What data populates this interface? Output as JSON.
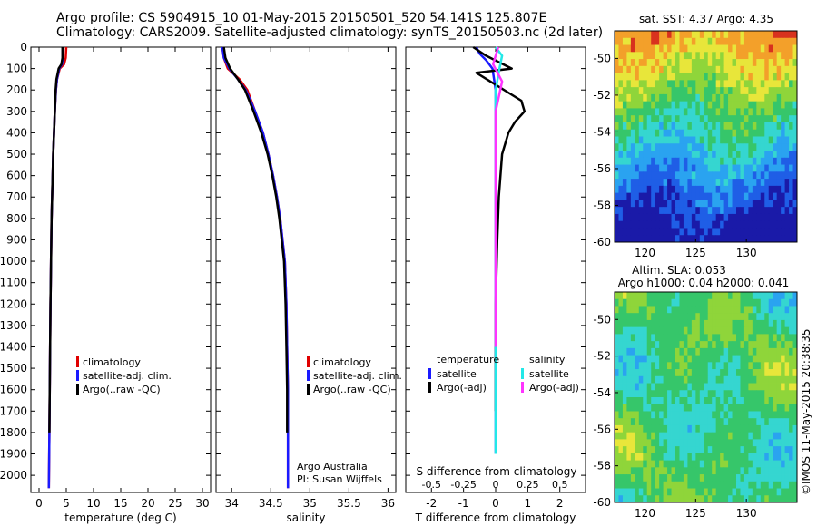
{
  "header": {
    "line1": "Argo profile: CS 5904915_10 01-May-2015 20150501_520 54.141S 125.807E",
    "line2": "Climatology: CARS2009. Satellite-adjusted climatology: synTS_20150503.nc (2d later)"
  },
  "colors": {
    "climatology": "#e00000",
    "satellite": "#1a1aff",
    "argo": "#000000",
    "salinity_satellite": "#22e8e8",
    "salinity_argo": "#ff33ff"
  },
  "chart_data": [
    {
      "type": "line",
      "panel": "temperature",
      "xlabel": "temperature (deg C)",
      "ylabel": "",
      "xlim": [
        -1.5,
        31.5
      ],
      "ylim": [
        2080,
        0
      ],
      "xticks": [
        0,
        5,
        10,
        15,
        20,
        25,
        30
      ],
      "yticks": [
        0,
        100,
        200,
        300,
        400,
        500,
        600,
        700,
        800,
        900,
        1000,
        1100,
        1200,
        1300,
        1400,
        1500,
        1600,
        1700,
        1800,
        1900,
        2000
      ],
      "legend": [
        "climatology",
        "satellite-adj. clim.",
        "Argo(..raw -QC)"
      ],
      "legend_position": "center-right",
      "series": [
        {
          "name": "climatology",
          "color": "#e00000",
          "x": [
            5.0,
            4.9,
            4.6,
            3.8,
            3.3,
            3.1,
            2.9,
            2.75,
            2.6,
            2.5,
            2.4,
            2.3,
            2.2,
            2.1,
            2.0,
            1.9,
            1.8
          ],
          "y": [
            0,
            50,
            80,
            100,
            150,
            200,
            300,
            400,
            500,
            600,
            700,
            800,
            1000,
            1200,
            1500,
            1800,
            2060
          ]
        },
        {
          "name": "satellite-adj. clim.",
          "color": "#1a1aff",
          "x": [
            4.4,
            4.4,
            4.2,
            3.7,
            3.3,
            3.1,
            2.9,
            2.75,
            2.6,
            2.5,
            2.4,
            2.3,
            2.2,
            2.1,
            2.0,
            1.9,
            1.8
          ],
          "y": [
            0,
            50,
            80,
            100,
            150,
            200,
            300,
            400,
            500,
            600,
            700,
            800,
            1000,
            1200,
            1500,
            1800,
            2060
          ]
        },
        {
          "name": "Argo(..raw -QC)",
          "color": "#000000",
          "x": [
            4.3,
            4.3,
            4.1,
            3.6,
            3.2,
            3.05,
            2.9,
            2.75,
            2.6,
            2.5,
            2.4,
            2.3,
            2.2,
            2.1,
            2.0,
            1.9
          ],
          "y": [
            0,
            50,
            80,
            100,
            150,
            200,
            300,
            400,
            500,
            600,
            700,
            800,
            1000,
            1200,
            1500,
            1800
          ]
        }
      ]
    },
    {
      "type": "line",
      "panel": "salinity",
      "xlabel": "salinity",
      "xlim": [
        33.8,
        36.1
      ],
      "ylim": [
        2080,
        0
      ],
      "xticks": [
        34,
        34.5,
        35,
        35.5,
        36
      ],
      "legend": [
        "climatology",
        "satellite-adj. clim.",
        "Argo(..raw -QC)"
      ],
      "legend_position": "center-right",
      "annotation": [
        "Argo Australia",
        "PI: Susan Wijffels"
      ],
      "series": [
        {
          "name": "climatology",
          "color": "#e00000",
          "x": [
            33.88,
            33.9,
            33.95,
            34.1,
            34.2,
            34.3,
            34.4,
            34.47,
            34.53,
            34.58,
            34.62,
            34.65,
            34.68,
            34.7,
            34.71,
            34.72,
            34.72,
            34.72
          ],
          "y": [
            0,
            50,
            100,
            150,
            200,
            300,
            400,
            500,
            600,
            700,
            800,
            900,
            1000,
            1200,
            1400,
            1600,
            1800,
            2060
          ]
        },
        {
          "name": "satellite-adj. clim.",
          "color": "#1a1aff",
          "x": [
            33.88,
            33.9,
            33.97,
            34.08,
            34.18,
            34.3,
            34.4,
            34.47,
            34.53,
            34.58,
            34.62,
            34.65,
            34.68,
            34.7,
            34.71,
            34.72,
            34.72,
            34.72
          ],
          "y": [
            0,
            50,
            100,
            150,
            200,
            300,
            400,
            500,
            600,
            700,
            800,
            900,
            1000,
            1200,
            1400,
            1600,
            1800,
            2060
          ]
        },
        {
          "name": "Argo(..raw -QC)",
          "color": "#000000",
          "x": [
            33.9,
            33.92,
            33.98,
            34.08,
            34.17,
            34.28,
            34.38,
            34.46,
            34.52,
            34.57,
            34.61,
            34.64,
            34.67,
            34.69,
            34.7,
            34.71,
            34.71
          ],
          "y": [
            0,
            50,
            100,
            150,
            200,
            300,
            400,
            500,
            600,
            700,
            800,
            900,
            1000,
            1200,
            1400,
            1600,
            1800
          ]
        }
      ]
    },
    {
      "type": "line",
      "panel": "difference",
      "xlabel": "T difference from climatology",
      "top_label": "S difference from climatology",
      "xlim": [
        -2.8,
        2.8
      ],
      "ylim": [
        2080,
        0
      ],
      "xticks": [
        -2,
        -1,
        0,
        1,
        2
      ],
      "s_ticks": [
        "-0.5",
        "-0.25",
        "0",
        "0.25",
        "0.5"
      ],
      "legend_temperature_title": "temperature",
      "legend_salinity_title": "salinity",
      "legend_temperature": [
        "satellite",
        "Argo(-adj)"
      ],
      "legend_salinity": [
        "satellite",
        "Argo(-adj)"
      ],
      "series": [
        {
          "name": "satellite",
          "group": "temperature",
          "color": "#1a1aff",
          "x": [
            -0.6,
            -0.5,
            -0.3,
            -0.1,
            0.0,
            0.0,
            0.0,
            0.0,
            0.0,
            0.0
          ],
          "y": [
            0,
            30,
            60,
            100,
            200,
            400,
            800,
            1200,
            1600,
            1900
          ]
        },
        {
          "name": "Argo(-adj)",
          "group": "temperature",
          "color": "#000000",
          "x": [
            -0.7,
            -0.3,
            0.5,
            -0.6,
            0.8,
            0.9,
            0.6,
            0.4,
            0.2,
            0.1,
            0.05,
            0.0,
            0.0
          ],
          "y": [
            0,
            40,
            100,
            120,
            250,
            300,
            350,
            400,
            500,
            700,
            900,
            1200,
            1700
          ]
        },
        {
          "name": "satellite",
          "group": "salinity",
          "color": "#22e8e8",
          "x": [
            0.0,
            0.05,
            0.03,
            0.0,
            0.0,
            0.0,
            0.0,
            0.0
          ],
          "y": [
            0,
            40,
            100,
            200,
            400,
            800,
            1200,
            1900
          ]
        },
        {
          "name": "Argo(-adj)",
          "group": "salinity",
          "color": "#ff33ff",
          "x": [
            0.02,
            -0.02,
            0.05,
            0.0,
            0.0,
            0.0,
            0.0
          ],
          "y": [
            0,
            80,
            160,
            300,
            600,
            1000,
            1400
          ]
        }
      ]
    },
    {
      "type": "heatmap",
      "panel": "sst_map",
      "title": "sat. SST: 4.37 Argo: 4.35",
      "xticks": [
        120,
        125,
        130
      ],
      "yticks": [
        -50,
        -52,
        -54,
        -56,
        -58,
        -60
      ],
      "xlim": [
        117,
        135
      ],
      "ylim": [
        -60,
        -48.5
      ]
    },
    {
      "type": "heatmap",
      "panel": "sla_map",
      "title_line1": "Altim. SLA: 0.053",
      "title_line2": "Argo h1000: 0.04 h2000: 0.041",
      "xticks": [
        120,
        125,
        130
      ],
      "yticks": [
        -50,
        -52,
        -54,
        -56,
        -58,
        -60
      ],
      "xlim": [
        117,
        135
      ],
      "ylim": [
        -60,
        -48.5
      ]
    }
  ],
  "footer": {
    "watermark": "©IMOS 11-May-2015 20:38:35"
  }
}
